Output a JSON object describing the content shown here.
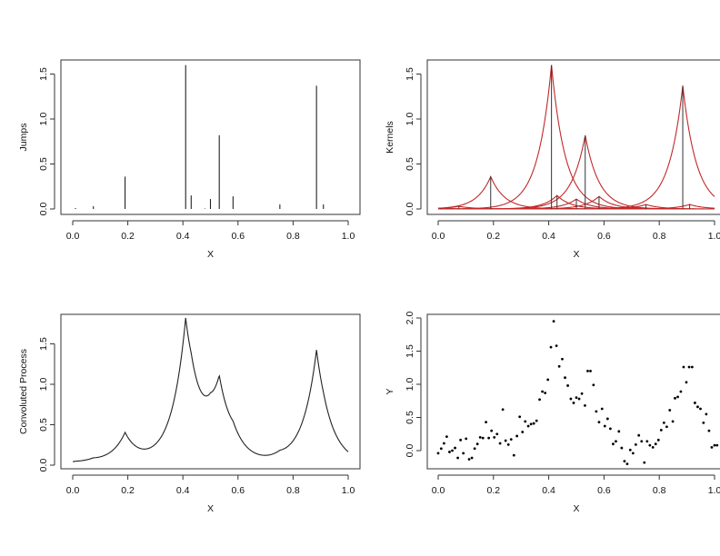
{
  "chart_data": [
    {
      "type": "bar",
      "subtype": "spike",
      "title": "",
      "xlabel": "X",
      "ylabel": "Jumps",
      "xlim": [
        0,
        1
      ],
      "ylim": [
        0,
        1.6
      ],
      "x_ticks": [
        "0.0",
        "0.2",
        "0.4",
        "0.6",
        "0.8",
        "1.0"
      ],
      "y_ticks": [
        "0.0",
        "0.5",
        "1.0",
        "1.5"
      ],
      "x": [
        0.01,
        0.075,
        0.19,
        0.41,
        0.43,
        0.48,
        0.5,
        0.532,
        0.582,
        0.752,
        0.885,
        0.91
      ],
      "values": [
        0.01,
        0.03,
        0.36,
        1.6,
        0.15,
        0.005,
        0.11,
        0.82,
        0.14,
        0.05,
        1.37,
        0.05
      ],
      "color": "#222222",
      "grid": false
    },
    {
      "type": "line",
      "subtype": "kernels",
      "title": "",
      "xlabel": "X",
      "ylabel": "Kernels",
      "xlim": [
        0,
        1
      ],
      "ylim": [
        0,
        1.6
      ],
      "x_ticks": [
        "0.0",
        "0.2",
        "0.4",
        "0.6",
        "0.8",
        "1.0"
      ],
      "y_ticks": [
        "0.0",
        "0.5",
        "1.0",
        "1.5"
      ],
      "kernel": "laplace",
      "kernel_scale": 0.05,
      "centers": [
        0.01,
        0.075,
        0.19,
        0.41,
        0.43,
        0.48,
        0.5,
        0.532,
        0.582,
        0.752,
        0.885,
        0.91
      ],
      "heights": [
        0.01,
        0.03,
        0.36,
        1.6,
        0.15,
        0.005,
        0.11,
        0.82,
        0.14,
        0.05,
        1.37,
        0.05
      ],
      "kernel_color": "#c0282a",
      "spike_color": "#333333",
      "grid": false
    },
    {
      "type": "line",
      "title": "",
      "xlabel": "X",
      "ylabel": "Convoluted Process",
      "xlim": [
        0,
        1
      ],
      "ylim": [
        0,
        1.8
      ],
      "x_ticks": [
        "0.0",
        "0.2",
        "0.4",
        "0.6",
        "0.8",
        "1.0"
      ],
      "y_ticks": [
        "0.0",
        "0.5",
        "1.0",
        "1.5"
      ],
      "x": [
        0.0,
        0.05,
        0.1,
        0.15,
        0.19,
        0.22,
        0.26,
        0.3,
        0.35,
        0.38,
        0.41,
        0.44,
        0.47,
        0.49,
        0.51,
        0.532,
        0.56,
        0.58,
        0.62,
        0.66,
        0.7,
        0.74,
        0.78,
        0.82,
        0.86,
        0.885,
        0.91,
        0.94,
        0.97,
        1.0
      ],
      "values": [
        0.03,
        0.05,
        0.09,
        0.2,
        0.38,
        0.24,
        0.18,
        0.26,
        0.65,
        1.15,
        1.78,
        1.3,
        0.95,
        0.86,
        0.92,
        1.07,
        0.7,
        0.52,
        0.25,
        0.14,
        0.11,
        0.14,
        0.2,
        0.4,
        0.95,
        1.34,
        0.95,
        0.5,
        0.27,
        0.15
      ],
      "color": "#222222",
      "grid": false
    },
    {
      "type": "scatter",
      "title": "",
      "xlabel": "X",
      "ylabel": "Y",
      "xlim": [
        0,
        1
      ],
      "ylim": [
        -0.2,
        2.0
      ],
      "x_ticks": [
        "0.0",
        "0.2",
        "0.4",
        "0.6",
        "0.8",
        "1.0"
      ],
      "y_ticks": [
        "0.0",
        "0.5",
        "1.0",
        "1.5",
        "2.0"
      ],
      "x": [
        0.0,
        0.011,
        0.021,
        0.031,
        0.041,
        0.051,
        0.061,
        0.071,
        0.081,
        0.091,
        0.101,
        0.112,
        0.122,
        0.132,
        0.142,
        0.152,
        0.162,
        0.173,
        0.183,
        0.193,
        0.203,
        0.213,
        0.224,
        0.234,
        0.244,
        0.254,
        0.264,
        0.274,
        0.285,
        0.295,
        0.305,
        0.315,
        0.326,
        0.336,
        0.346,
        0.356,
        0.367,
        0.377,
        0.387,
        0.397,
        0.408,
        0.418,
        0.428,
        0.438,
        0.449,
        0.459,
        0.469,
        0.48,
        0.49,
        0.5,
        0.51,
        0.52,
        0.531,
        0.541,
        0.551,
        0.562,
        0.572,
        0.582,
        0.593,
        0.603,
        0.613,
        0.623,
        0.633,
        0.643,
        0.654,
        0.664,
        0.674,
        0.684,
        0.695,
        0.705,
        0.715,
        0.726,
        0.736,
        0.746,
        0.756,
        0.766,
        0.777,
        0.787,
        0.797,
        0.807,
        0.817,
        0.827,
        0.838,
        0.849,
        0.857,
        0.867,
        0.878,
        0.888,
        0.898,
        0.908,
        0.919,
        0.929,
        0.939,
        0.949,
        0.96,
        0.97,
        0.98,
        0.99,
        1.0,
        1.009
      ],
      "values": [
        -0.04,
        0.03,
        0.11,
        0.21,
        -0.02,
        0.0,
        0.04,
        -0.11,
        0.16,
        -0.04,
        0.18,
        -0.13,
        -0.11,
        0.03,
        0.1,
        0.2,
        0.19,
        0.43,
        0.19,
        0.3,
        0.2,
        0.25,
        0.11,
        0.62,
        0.15,
        0.09,
        0.17,
        -0.07,
        0.22,
        0.51,
        0.28,
        0.44,
        0.37,
        0.4,
        0.41,
        0.45,
        0.77,
        0.89,
        0.87,
        1.07,
        1.56,
        1.95,
        1.58,
        1.27,
        1.38,
        1.1,
        0.98,
        0.78,
        0.72,
        0.8,
        0.78,
        0.86,
        0.68,
        1.2,
        1.2,
        0.99,
        0.59,
        0.43,
        0.63,
        0.37,
        0.48,
        0.33,
        0.1,
        0.14,
        0.29,
        0.04,
        -0.16,
        -0.2,
        0.01,
        -0.04,
        0.09,
        0.23,
        0.14,
        -0.18,
        0.14,
        0.08,
        0.05,
        0.1,
        0.16,
        0.31,
        0.42,
        0.36,
        0.61,
        0.44,
        0.79,
        0.81,
        0.89,
        1.26,
        1.03,
        1.26,
        1.26,
        0.72,
        0.66,
        0.63,
        0.42,
        0.55,
        0.3,
        0.05,
        0.08,
        0.08
      ],
      "marker": "dot",
      "color": "#000000",
      "grid": false
    }
  ],
  "panels": [
    {
      "ylabel": "Jumps",
      "xlabel": "X"
    },
    {
      "ylabel": "Kernels",
      "xlabel": "X"
    },
    {
      "ylabel": "Convoluted Process",
      "xlabel": "X"
    },
    {
      "ylabel": "Y",
      "xlabel": "X"
    }
  ]
}
